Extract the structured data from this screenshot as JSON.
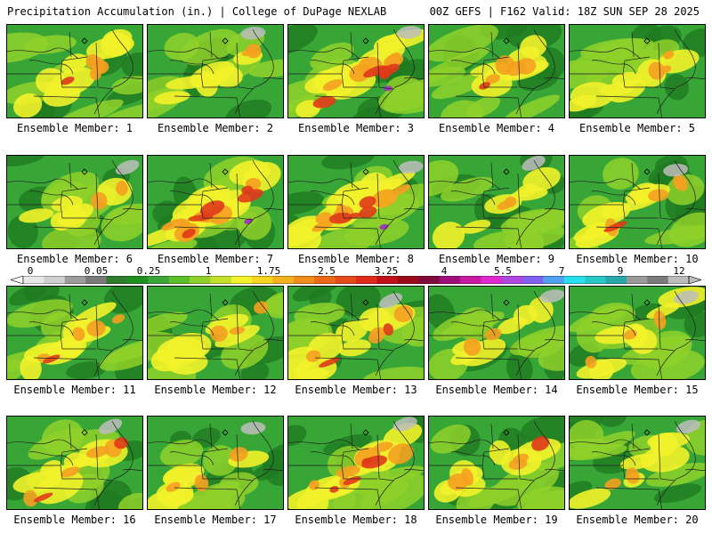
{
  "header": {
    "title": "Precipitation Accumulation (in.) | College of DuPage NEXLAB",
    "run_info": "00Z GEFS | F162 Valid: 18Z SUN SEP 28 2025"
  },
  "members": [
    {
      "label": "Ensemble Member: 1",
      "intensity": 0.45
    },
    {
      "label": "Ensemble Member: 2",
      "intensity": 0.25
    },
    {
      "label": "Ensemble Member: 3",
      "intensity": 0.75
    },
    {
      "label": "Ensemble Member: 4",
      "intensity": 0.45
    },
    {
      "label": "Ensemble Member: 5",
      "intensity": 0.35
    },
    {
      "label": "Ensemble Member: 6",
      "intensity": 0.3
    },
    {
      "label": "Ensemble Member: 7",
      "intensity": 0.85
    },
    {
      "label": "Ensemble Member: 8",
      "intensity": 0.75
    },
    {
      "label": "Ensemble Member: 9",
      "intensity": 0.2
    },
    {
      "label": "Ensemble Member: 10",
      "intensity": 0.45
    },
    {
      "label": "Ensemble Member: 11",
      "intensity": 0.45
    },
    {
      "label": "Ensemble Member: 12",
      "intensity": 0.35
    },
    {
      "label": "Ensemble Member: 13",
      "intensity": 0.55
    },
    {
      "label": "Ensemble Member: 14",
      "intensity": 0.3
    },
    {
      "label": "Ensemble Member: 15",
      "intensity": 0.4
    },
    {
      "label": "Ensemble Member: 16",
      "intensity": 0.55
    },
    {
      "label": "Ensemble Member: 17",
      "intensity": 0.4
    },
    {
      "label": "Ensemble Member: 18",
      "intensity": 0.7
    },
    {
      "label": "Ensemble Member: 19",
      "intensity": 0.5
    },
    {
      "label": "Ensemble Member: 20",
      "intensity": 0.3
    }
  ],
  "colorbar": {
    "tick_labels": [
      "0",
      "0.05",
      "0.25",
      "1",
      "1.75",
      "2.5",
      "3.25",
      "4",
      "5.5",
      "7",
      "9",
      "12"
    ],
    "colors": [
      "#e8e8e8",
      "#cfcfcf",
      "#9c9c9c",
      "#7a7a7a",
      "#2e7d2e",
      "#1f8f1f",
      "#3aa63a",
      "#5cbf2a",
      "#8fd12a",
      "#c3e02a",
      "#f2f22a",
      "#f5d520",
      "#f5b020",
      "#f08c1a",
      "#eb6a1a",
      "#e64a1a",
      "#e02a1a",
      "#c0101a",
      "#9c0a1a",
      "#800a3a",
      "#a0107a",
      "#c81aa0",
      "#e028d0",
      "#b048e0",
      "#8060f0",
      "#50a0f0",
      "#28e0f0",
      "#28c8c8",
      "#28a8a8",
      "#9a9a9a",
      "#7a7a7a",
      "#bcbcbc"
    ],
    "palette": {
      "green": "#37a637",
      "dark_green": "#1f7a1f",
      "light_green": "#8fd12a",
      "yellow": "#f2f22a",
      "orange": "#f5a020",
      "red": "#e03a1a",
      "dark_red": "#b0101a",
      "purple": "#a030c0",
      "gray": "#bdbdbd"
    }
  }
}
